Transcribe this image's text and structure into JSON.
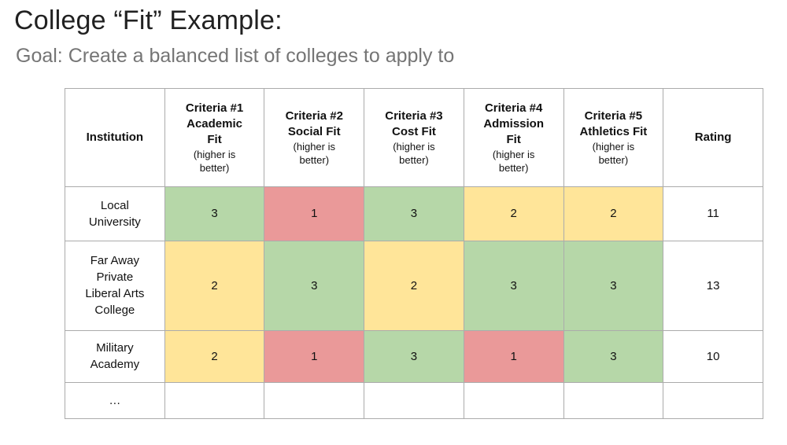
{
  "page": {
    "title": "College “Fit” Example:",
    "subtitle": "Goal: Create a balanced list of colleges to apply to"
  },
  "colors": {
    "green": "#b6d7a8",
    "yellow": "#ffe599",
    "red": "#ea9999",
    "white": "#ffffff",
    "border": "#ababab",
    "title_text": "#212121",
    "subtitle_text": "#757575"
  },
  "table": {
    "columns": [
      {
        "title": "Institution",
        "note": ""
      },
      {
        "title": "Criteria #1\nAcademic\nFit",
        "note": "(higher is\nbetter)"
      },
      {
        "title": "Criteria #2\nSocial Fit",
        "note": "(higher is\nbetter)"
      },
      {
        "title": "Criteria #3\nCost Fit",
        "note": "(higher is\nbetter)"
      },
      {
        "title": "Criteria #4\nAdmission\nFit",
        "note": "(higher is\nbetter)"
      },
      {
        "title": "Criteria #5\nAthletics Fit",
        "note": "(higher is\nbetter)"
      },
      {
        "title": "Rating",
        "note": ""
      }
    ],
    "rows": [
      {
        "institution": "Local\nUniversity",
        "scores": [
          {
            "value": "3",
            "color": "green"
          },
          {
            "value": "1",
            "color": "red"
          },
          {
            "value": "3",
            "color": "green"
          },
          {
            "value": "2",
            "color": "yellow"
          },
          {
            "value": "2",
            "color": "yellow"
          }
        ],
        "rating": "11"
      },
      {
        "institution": "Far Away\nPrivate\nLiberal Arts\nCollege",
        "scores": [
          {
            "value": "2",
            "color": "yellow"
          },
          {
            "value": "3",
            "color": "green"
          },
          {
            "value": "2",
            "color": "yellow"
          },
          {
            "value": "3",
            "color": "green"
          },
          {
            "value": "3",
            "color": "green"
          }
        ],
        "rating": "13"
      },
      {
        "institution": "Military\nAcademy",
        "scores": [
          {
            "value": "2",
            "color": "yellow"
          },
          {
            "value": "1",
            "color": "red"
          },
          {
            "value": "3",
            "color": "green"
          },
          {
            "value": "1",
            "color": "red"
          },
          {
            "value": "3",
            "color": "green"
          }
        ],
        "rating": "10"
      },
      {
        "institution": "…",
        "scores": [
          {
            "value": "",
            "color": "white"
          },
          {
            "value": "",
            "color": "white"
          },
          {
            "value": "",
            "color": "white"
          },
          {
            "value": "",
            "color": "white"
          },
          {
            "value": "",
            "color": "white"
          }
        ],
        "rating": ""
      }
    ]
  }
}
